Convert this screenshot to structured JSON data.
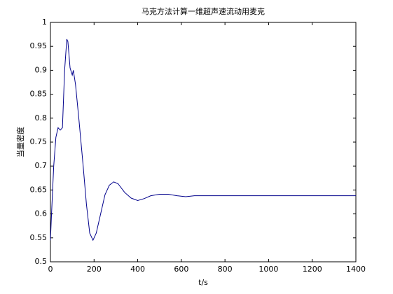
{
  "chart_data": {
    "type": "line",
    "title": "马克方法计算一维超声速流动用麦克",
    "x_label": "t/s",
    "y_label": "当量密度",
    "x": [
      0,
      5,
      15,
      25,
      35,
      45,
      55,
      65,
      75,
      80,
      90,
      100,
      105,
      115,
      130,
      150,
      165,
      180,
      195,
      210,
      230,
      250,
      270,
      290,
      310,
      340,
      370,
      400,
      430,
      460,
      500,
      540,
      580,
      620,
      660,
      700,
      1400
    ],
    "series": [
      {
        "name": "当量密度",
        "color": "#00008b",
        "values": [
          0.545,
          0.6,
          0.7,
          0.76,
          0.78,
          0.775,
          0.78,
          0.9,
          0.965,
          0.96,
          0.905,
          0.89,
          0.9,
          0.87,
          0.8,
          0.7,
          0.62,
          0.56,
          0.545,
          0.56,
          0.6,
          0.64,
          0.66,
          0.667,
          0.663,
          0.645,
          0.633,
          0.628,
          0.632,
          0.638,
          0.641,
          0.641,
          0.638,
          0.636,
          0.638,
          0.638,
          0.638
        ]
      }
    ],
    "xlim": [
      0,
      1400
    ],
    "xticks": [
      0,
      200,
      400,
      600,
      800,
      1000,
      1200,
      1400
    ],
    "ylim": [
      0.5,
      1
    ],
    "yticks": [
      0.5,
      0.55,
      0.6,
      0.65,
      0.7,
      0.75,
      0.8,
      0.85,
      0.9,
      0.95,
      1
    ],
    "grid": false
  }
}
